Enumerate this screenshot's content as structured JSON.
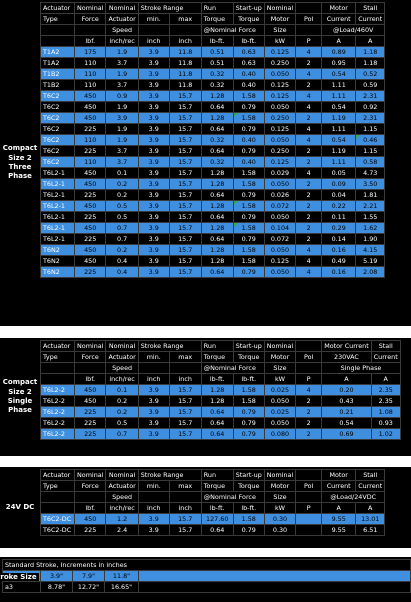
{
  "headers": {
    "actuator": [
      "Actuator",
      "Type"
    ],
    "nominal_force": [
      "Nominal",
      "Force",
      "lbf."
    ],
    "nominal_speed": [
      "Nominal",
      "Actuator",
      "Speed",
      "inch/rec"
    ],
    "stroke_range": [
      "Stroke Range",
      "min.",
      "max",
      "inch",
      "inch"
    ],
    "run_torque": [
      "Run",
      "Torque",
      "@Nominal Force",
      "lb-ft."
    ],
    "startup": [
      "Start-up",
      "Torque",
      "lb-ft."
    ],
    "motor": [
      "Nominal",
      "Motor",
      "Size",
      "kW"
    ],
    "pol": [
      "Pol",
      "P"
    ],
    "current": [
      "Motor",
      "Current",
      "@Load/460V",
      "A"
    ],
    "stall": [
      "Stall",
      "Current",
      "A"
    ]
  },
  "section1": {
    "label": "Compact Size 2 Three Phase",
    "rows": [
      [
        "T1A2",
        "175",
        "1.9",
        "3.9",
        "11.8",
        "0.51",
        "0.63",
        "0.125",
        "4",
        "0.89",
        "1.18"
      ],
      [
        "T1A2",
        "110",
        "3.7",
        "3.9",
        "11.8",
        "0.51",
        "0.63",
        "0.250",
        "2",
        "0.95",
        "1.18"
      ],
      [
        "T1B2",
        "110",
        "1.9",
        "3.9",
        "11.8",
        "0.32",
        "0.40",
        "0.050",
        "4",
        "0.54",
        "0.52"
      ],
      [
        "T1B2",
        "110",
        "3.7",
        "3.9",
        "11.8",
        "0.32",
        "0.40",
        "0.125",
        "2",
        "1.11",
        "0.59"
      ],
      [
        "T6C2",
        "450",
        "0.9",
        "3.9",
        "15.7",
        "1.28",
        "1.58",
        "0.125",
        "4",
        "1.11",
        "2.31"
      ],
      [
        "T6C2",
        "450",
        "1.9",
        "3.9",
        "15.7",
        "0.64",
        "0.79",
        "0.050",
        "4",
        "0.54",
        "0.92"
      ],
      [
        "T6C2",
        "450",
        "3.9",
        "3.9",
        "15.7",
        "1.28",
        "1.58",
        "0.250",
        "2",
        "1.19",
        "2.31"
      ],
      [
        "T6C2",
        "225",
        "1.9",
        "3.9",
        "15.7",
        "0.64",
        "0.79",
        "0.125",
        "4",
        "1.11",
        "1.15"
      ],
      [
        "T6C2",
        "110",
        "1.9",
        "3.9",
        "15.7",
        "0.32",
        "0.40",
        "0.050",
        "4",
        "0.54",
        "0.46"
      ],
      [
        "T6C2",
        "225",
        "3.7",
        "3.9",
        "15.7",
        "0.64",
        "0.79",
        "0.250",
        "2",
        "1.19",
        "1.15"
      ],
      [
        "T6C2",
        "110",
        "3.7",
        "3.9",
        "15.7",
        "0.32",
        "0.40",
        "0.125",
        "2",
        "1.11",
        "0.58"
      ],
      [
        "T6L2-1",
        "450",
        "0.1",
        "3.9",
        "15.7",
        "1.28",
        "1.58",
        "0.029",
        "4",
        "0.05",
        "4.73"
      ],
      [
        "T6L2-1",
        "450",
        "0.2",
        "3.9",
        "15.7",
        "1.28",
        "1.58",
        "0.050",
        "2",
        "0.09",
        "3.50"
      ],
      [
        "T6L2-1",
        "225",
        "0.2",
        "3.9",
        "15.7",
        "0.64",
        "0.79",
        "0.026",
        "2",
        "0.04",
        "1.81"
      ],
      [
        "T6L2-1",
        "450",
        "0.5",
        "3.9",
        "15.7",
        "1.28",
        "1.58",
        "0.072",
        "2",
        "0.22",
        "2.21"
      ],
      [
        "T6L2-1",
        "225",
        "0.5",
        "3.9",
        "15.7",
        "0.64",
        "0.79",
        "0.050",
        "2",
        "0.11",
        "1.55"
      ],
      [
        "T6L2-1",
        "450",
        "0.7",
        "3.9",
        "15.7",
        "1.28",
        "1.58",
        "0.104",
        "2",
        "0.29",
        "1.62"
      ],
      [
        "T6L2-1",
        "225",
        "0.7",
        "3.9",
        "15.7",
        "0.64",
        "0.79",
        "0.072",
        "2",
        "0.14",
        "1.90"
      ],
      [
        "T6N2",
        "450",
        "0.2",
        "3.9",
        "15.7",
        "1.28",
        "1.58",
        "0.050",
        "4",
        "0.16",
        "4.15"
      ],
      [
        "T6N2",
        "450",
        "0.4",
        "3.9",
        "15.7",
        "1.28",
        "1.58",
        "0.125",
        "4",
        "0.49",
        "5.19"
      ],
      [
        "T6N2",
        "225",
        "0.4",
        "3.9",
        "15.7",
        "0.64",
        "0.79",
        "0.050",
        "4",
        "0.16",
        "2.08"
      ]
    ]
  },
  "section2": {
    "label": "Compact Size 2 Single Phase",
    "current_hdr": [
      "Motor Current",
      "230VAC",
      "Single Phase"
    ],
    "rows": [
      [
        "T6L2-2",
        "450",
        "0.1",
        "3.9",
        "15.7",
        "1.28",
        "1.58",
        "0.025",
        "4",
        "0.20",
        "2.35"
      ],
      [
        "T6L2-2",
        "450",
        "0.2",
        "3.9",
        "15.7",
        "1.28",
        "1.58",
        "0.050",
        "2",
        "0.43",
        "2.35"
      ],
      [
        "T6L2-2",
        "225",
        "0.2",
        "3.9",
        "15.7",
        "0.64",
        "0.79",
        "0.025",
        "2",
        "0.21",
        "1.08"
      ],
      [
        "T6L2-2",
        "225",
        "0.5",
        "3.9",
        "15.7",
        "0.64",
        "0.79",
        "0.050",
        "2",
        "0.54",
        "0.93"
      ],
      [
        "T6L2-2",
        "225",
        "0.7",
        "3.9",
        "15.7",
        "0.64",
        "0.79",
        "0.080",
        "2",
        "0.69",
        "1.02"
      ]
    ]
  },
  "section3": {
    "label": "24V DC",
    "current_hdr": [
      "Motor",
      "Current",
      "@Load/24VDC",
      "A"
    ],
    "rows": [
      [
        "T6C2-DC",
        "450",
        "1.2",
        "3.9",
        "15.7",
        "127.60",
        "1.58",
        "0.30",
        "",
        "9.55",
        "13.01"
      ],
      [
        "T6C2-DC",
        "225",
        "2.4",
        "3.9",
        "15.7",
        "0.64",
        "0.79",
        "0.30",
        "",
        "9.55",
        "6.51"
      ]
    ]
  },
  "section4": {
    "title": "Standard Stroke, Increments in inches",
    "label": "Stroke Size",
    "rows": [
      [
        "Stroke",
        "3.9\"",
        "7.9\"",
        "11.8\""
      ],
      [
        "a3",
        "8.78\"",
        "12.72\"",
        "16.65\""
      ]
    ]
  },
  "colors": {
    "highlight_row": "#3f8fe0",
    "dark_row": "#000000",
    "marker": "#3aa84a"
  }
}
